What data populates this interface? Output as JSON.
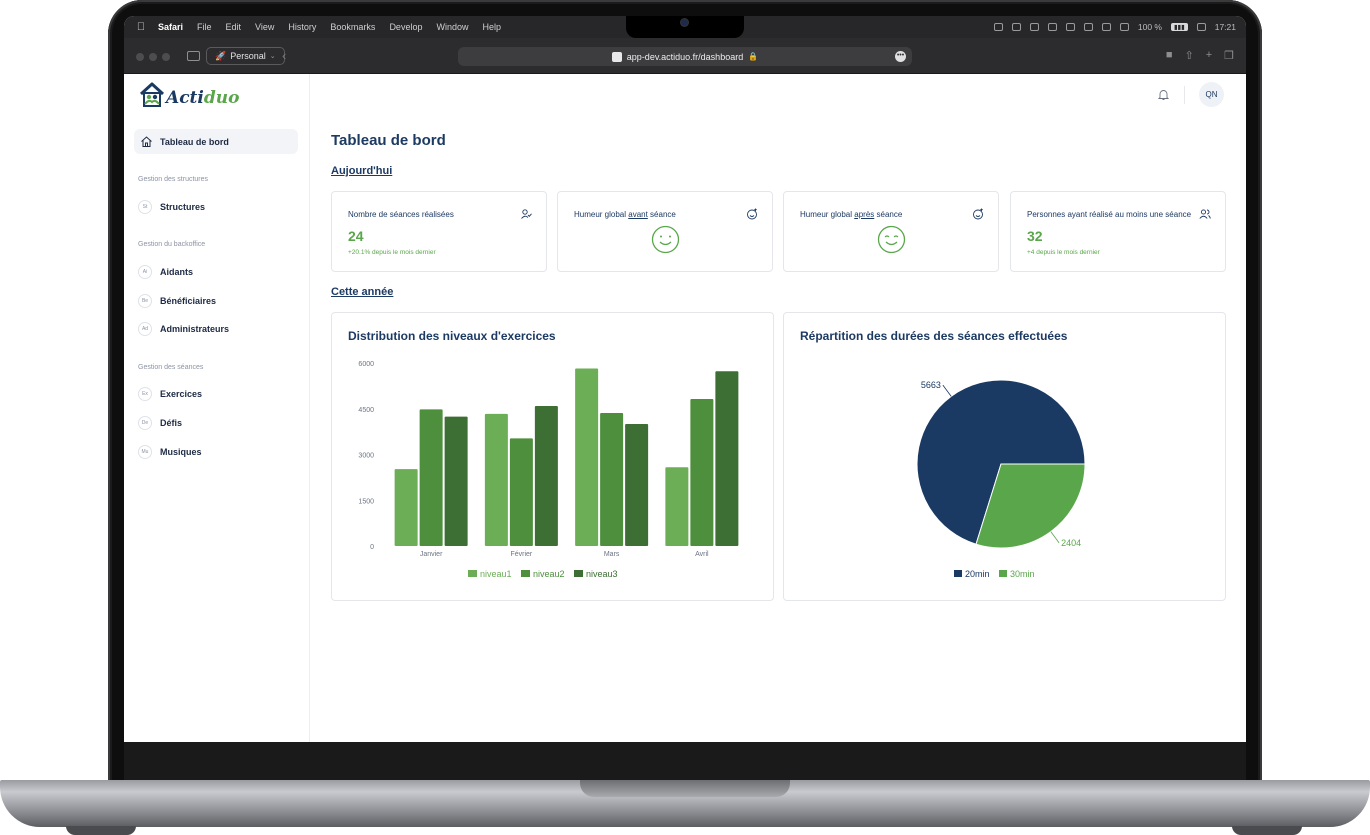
{
  "menubar": {
    "items": [
      "Safari",
      "File",
      "Edit",
      "View",
      "History",
      "Bookmarks",
      "Develop",
      "Window",
      "Help"
    ],
    "battery": "100 %",
    "time": "17:21"
  },
  "browser": {
    "profile": "Personal",
    "url": "app-dev.actiduo.fr/dashboard"
  },
  "brand": {
    "name_a": "Acti",
    "name_b": "duo"
  },
  "user": {
    "initials": "QN"
  },
  "sidebar": {
    "active": "Tableau de bord",
    "sections": [
      {
        "title": "Gestion des structures",
        "items": [
          {
            "abbr": "St",
            "label": "Structures"
          }
        ]
      },
      {
        "title": "Gestion du backoffice",
        "items": [
          {
            "abbr": "Ai",
            "label": "Aidants"
          },
          {
            "abbr": "Be",
            "label": "Bénéficiaires"
          },
          {
            "abbr": "Ad",
            "label": "Administrateurs"
          }
        ]
      },
      {
        "title": "Gestion des séances",
        "items": [
          {
            "abbr": "Ex",
            "label": "Exercices"
          },
          {
            "abbr": "De",
            "label": "Défis"
          },
          {
            "abbr": "Mu",
            "label": "Musiques"
          }
        ]
      }
    ]
  },
  "page": {
    "title": "Tableau de bord",
    "today": "Aujourd'hui",
    "year": "Cette année"
  },
  "cards": [
    {
      "label": "Nombre de séances réalisées",
      "value": "24",
      "delta": "+20.1% depuis le mois dernier"
    },
    {
      "label_pre": "Humeur global ",
      "label_u": "avant",
      "label_post": " séance"
    },
    {
      "label_pre": "Humeur global ",
      "label_u": "après",
      "label_post": " séance"
    },
    {
      "label": "Personnes ayant réalisé au moins une séance",
      "value": "32",
      "delta": "+4 depuis le mois dernier"
    }
  ],
  "colors": {
    "navy": "#1a3a63",
    "green1": "#6bae56",
    "green2": "#4d8f3d",
    "green3": "#3d6e34",
    "pie_green": "#5aa64b"
  },
  "chart_data": [
    {
      "type": "bar",
      "title": "Distribution des niveaux d'exercices",
      "categories": [
        "Janvier",
        "Février",
        "Mars",
        "Avril"
      ],
      "series": [
        {
          "name": "niveau1",
          "values": [
            2520,
            4330,
            5820,
            2580
          ]
        },
        {
          "name": "niveau2",
          "values": [
            4480,
            3530,
            4360,
            4820
          ]
        },
        {
          "name": "niveau3",
          "values": [
            4240,
            4590,
            4000,
            5730
          ]
        }
      ],
      "yticks": [
        "0",
        "1500",
        "3000",
        "4500",
        "6000"
      ],
      "ylim": [
        0,
        6000
      ],
      "legend": "bottom"
    },
    {
      "type": "pie",
      "title": "Répartition des durées des séances effectuées",
      "labels": [
        "20min",
        "30min"
      ],
      "values": [
        5663,
        2404
      ],
      "data_labels": [
        "5663",
        "2404"
      ],
      "legend": "bottom"
    }
  ]
}
